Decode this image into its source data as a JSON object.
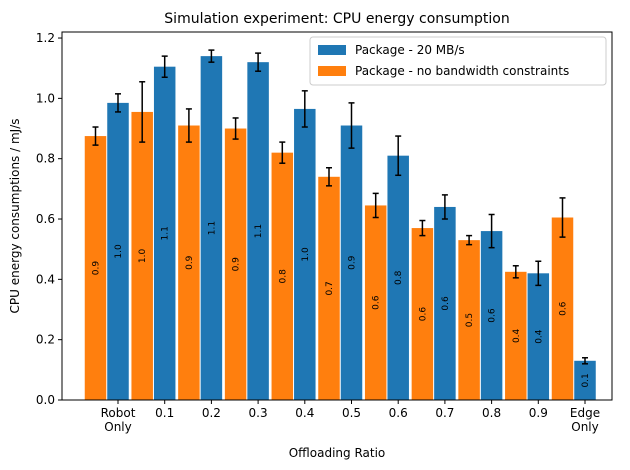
{
  "chart_data": {
    "type": "grouped_bar",
    "title": "Simulation experiment: CPU energy consumption",
    "xlabel": "Offloading Ratio",
    "ylabel": "CPU energy consumptions / mJ/s",
    "categories": [
      "Robot\nOnly",
      "0.1",
      "0.2",
      "0.3",
      "0.4",
      "0.5",
      "0.6",
      "0.7",
      "0.8",
      "0.9",
      "Edge\nOnly"
    ],
    "series": [
      {
        "name": "Package - 20 MB/s",
        "color": "#1f77b4",
        "values": [
          0.985,
          1.105,
          1.14,
          1.12,
          0.965,
          0.91,
          0.81,
          0.64,
          0.56,
          0.42,
          0.13
        ],
        "errors": [
          0.03,
          0.035,
          0.02,
          0.03,
          0.06,
          0.075,
          0.065,
          0.04,
          0.055,
          0.04,
          0.01
        ],
        "value_labels": [
          "1.0",
          "1.1",
          "1.1",
          "1.1",
          "1.0",
          "0.9",
          "0.8",
          "0.6",
          "0.6",
          "0.4",
          "0.1"
        ]
      },
      {
        "name": "Package - no bandwidth constraints",
        "color": "#ff7f0e",
        "values": [
          0.875,
          0.955,
          0.91,
          0.9,
          0.82,
          0.74,
          0.645,
          0.57,
          0.53,
          0.425,
          0.605
        ],
        "errors": [
          0.03,
          0.1,
          0.055,
          0.035,
          0.035,
          0.03,
          0.04,
          0.025,
          0.015,
          0.02,
          0.065
        ],
        "value_labels": [
          "0.9",
          "1.0",
          "0.9",
          "0.9",
          "0.8",
          "0.7",
          "0.6",
          "0.6",
          "0.5",
          "0.4",
          "0.6"
        ]
      }
    ],
    "ylim": [
      0,
      1.22
    ],
    "yticks": [
      {
        "value": 0,
        "label": "0.0"
      },
      0.2,
      0.4,
      0.6,
      0.8,
      {
        "value": 1,
        "label": "1.0"
      },
      1.2
    ],
    "legend": "upper right"
  }
}
